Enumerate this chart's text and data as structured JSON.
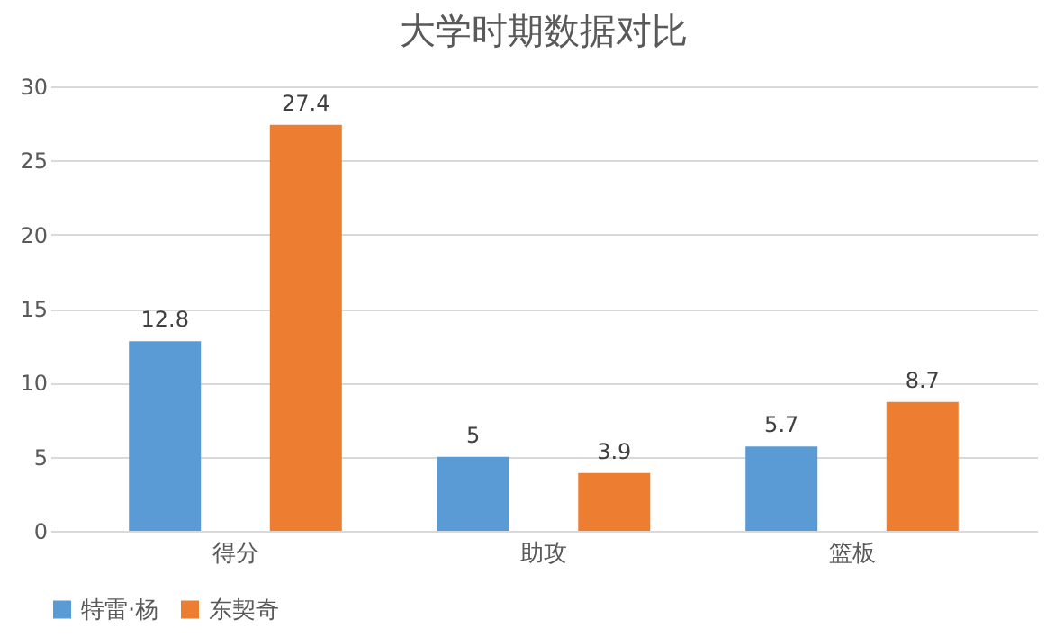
{
  "chart_data": {
    "type": "bar",
    "title": "大学时期数据对比",
    "categories": [
      "得分",
      "助攻",
      "篮板"
    ],
    "series": [
      {
        "name": "特雷·杨",
        "color": "#5b9bd5",
        "values": [
          12.8,
          5,
          5.7
        ]
      },
      {
        "name": "东契奇",
        "color": "#ed7d31",
        "values": [
          27.4,
          3.9,
          8.7
        ]
      }
    ],
    "ylim": [
      0,
      30
    ],
    "yticks": [
      0,
      5,
      10,
      15,
      20,
      25,
      30
    ],
    "grid": "y",
    "legend": "bottom",
    "data_labels": true
  }
}
